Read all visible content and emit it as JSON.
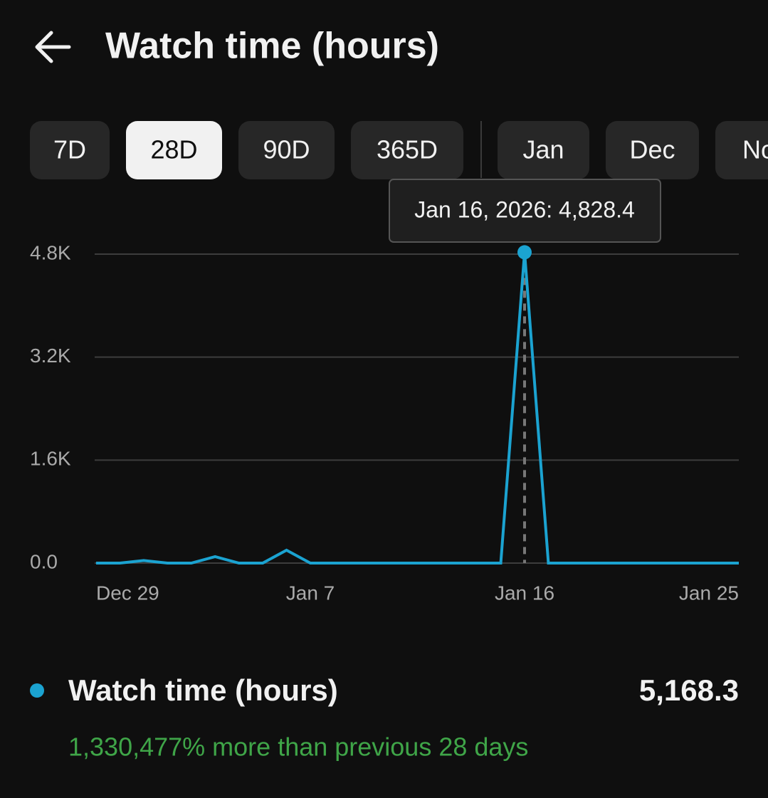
{
  "header": {
    "title": "Watch time (hours)"
  },
  "tabs": {
    "items": [
      "7D",
      "28D",
      "90D",
      "365D",
      "Jan",
      "Dec",
      "Nov"
    ],
    "selected": 1
  },
  "chart_data": {
    "type": "line",
    "categories": [
      "Dec 29",
      null,
      null,
      null,
      null,
      null,
      null,
      null,
      null,
      "Jan 7",
      null,
      null,
      null,
      null,
      null,
      null,
      null,
      null,
      "Jan 16",
      null,
      null,
      null,
      null,
      null,
      null,
      null,
      null,
      "Jan 25"
    ],
    "series": [
      {
        "name": "Watch time (hours)",
        "color": "#1ba3d1",
        "values": [
          0,
          0,
          40,
          0,
          0,
          100,
          0,
          0,
          200,
          0,
          0,
          0,
          0,
          0,
          0,
          0,
          0,
          0,
          4828.4,
          0,
          0,
          0,
          0,
          0,
          0,
          0,
          0,
          0
        ]
      }
    ],
    "ylim": [
      0,
      4800
    ],
    "yticks": [
      {
        "value": 0,
        "label": "0.0"
      },
      {
        "value": 1600,
        "label": "1.6K"
      },
      {
        "value": 3200,
        "label": "3.2K"
      },
      {
        "value": 4800,
        "label": "4.8K"
      }
    ],
    "grid": true,
    "tooltip": {
      "index": 18,
      "text": "Jan 16, 2026: 4,828.4"
    }
  },
  "summary": {
    "total": {
      "value": 5168.3,
      "label": "5,168.3"
    },
    "change": "1,330,477% more than previous 28 days"
  }
}
